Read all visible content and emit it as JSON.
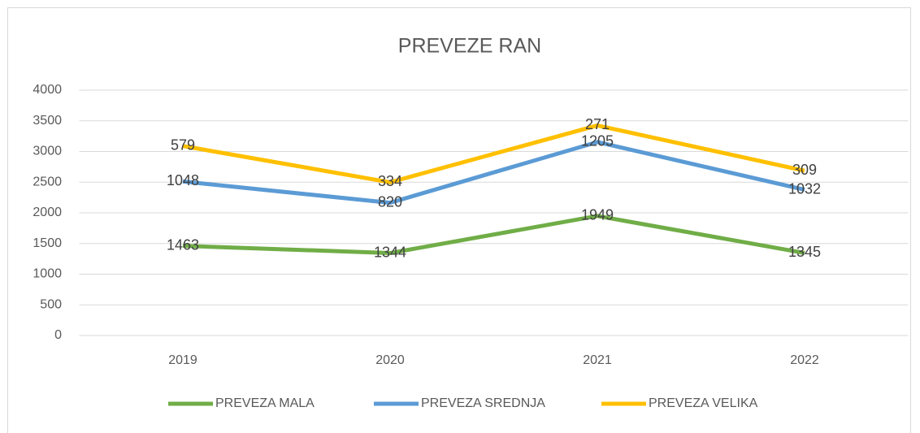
{
  "chart_data": {
    "type": "line",
    "stacked": true,
    "title": "PREVEZE RAN",
    "categories": [
      "2019",
      "2020",
      "2021",
      "2022"
    ],
    "series": [
      {
        "name": "PREVEZA MALA",
        "color": "#70ad47",
        "values": [
          1463,
          1344,
          1949,
          1345
        ]
      },
      {
        "name": "PREVEZA SREDNJA",
        "color": "#5b9bd5",
        "values": [
          1048,
          820,
          1205,
          1032
        ]
      },
      {
        "name": "PREVEZA VELIKA",
        "color": "#ffc000",
        "values": [
          579,
          334,
          271,
          309
        ]
      }
    ],
    "ylim": [
      0,
      4000
    ],
    "yticks": [
      0,
      500,
      1000,
      1500,
      2000,
      2500,
      3000,
      3500,
      4000
    ],
    "grid": true,
    "legend": "bottom"
  }
}
